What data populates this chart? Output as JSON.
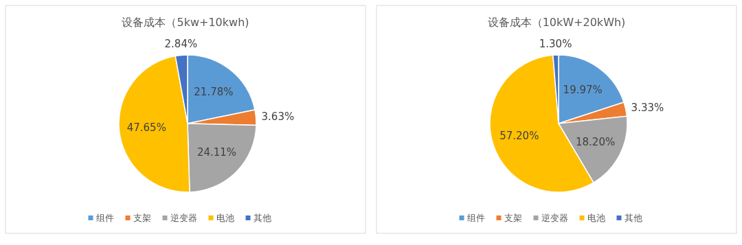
{
  "chart_data": [
    {
      "type": "pie",
      "title": "设备成本（5kw+10kwh)",
      "categories": [
        "组件",
        "支架",
        "逆变器",
        "电池",
        "其他"
      ],
      "values": [
        21.78,
        3.63,
        24.11,
        47.65,
        2.84
      ],
      "value_labels": [
        "21.78%",
        "3.63%",
        "24.11%",
        "47.65%",
        "2.84%"
      ],
      "colors": [
        "#5b9bd5",
        "#ed7d31",
        "#a5a5a5",
        "#ffc000",
        "#4472c4"
      ],
      "legend": "bottom"
    },
    {
      "type": "pie",
      "title": "设备成本（10kW+20kWh)",
      "categories": [
        "组件",
        "支架",
        "逆变器",
        "电池",
        "其他"
      ],
      "values": [
        19.97,
        3.33,
        18.2,
        57.2,
        1.3
      ],
      "value_labels": [
        "19.97%",
        "3.33%",
        "18.20%",
        "57.20%",
        "1.30%"
      ],
      "colors": [
        "#5b9bd5",
        "#ed7d31",
        "#a5a5a5",
        "#ffc000",
        "#4472c4"
      ],
      "legend": "bottom"
    }
  ]
}
